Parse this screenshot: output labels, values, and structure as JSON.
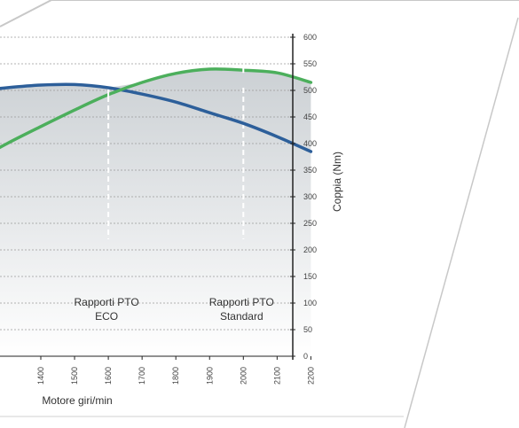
{
  "chart_data": {
    "type": "line",
    "title": "",
    "xlabel": "Motore giri/min",
    "ylabel": "Coppia (Nm)",
    "x_ticks": [
      1400,
      1500,
      1600,
      1700,
      1800,
      1900,
      2000,
      2100,
      2200
    ],
    "y_ticks": [
      0,
      50,
      100,
      150,
      200,
      250,
      300,
      350,
      400,
      450,
      500,
      550,
      600
    ],
    "xlim": [
      1200,
      2200
    ],
    "ylim": [
      0,
      600
    ],
    "grid": true,
    "series": [
      {
        "color": "#2d5f9a",
        "x": [
          1200,
          1300,
          1400,
          1500,
          1600,
          1700,
          1800,
          1900,
          2000,
          2100,
          2200
        ],
        "y": [
          498,
          505,
          510,
          511,
          505,
          493,
          478,
          458,
          438,
          413,
          385
        ]
      },
      {
        "color": "#4caf5c",
        "x": [
          1200,
          1300,
          1400,
          1500,
          1600,
          1700,
          1800,
          1900,
          2000,
          2100,
          2200
        ],
        "y": [
          365,
          400,
          432,
          463,
          492,
          515,
          532,
          540,
          538,
          533,
          515
        ]
      }
    ],
    "markers": [
      {
        "x": 1600,
        "label_line1": "Rapporti PTO",
        "label_line2": "ECO"
      },
      {
        "x": 2000,
        "label_line1": "Rapporti PTO",
        "label_line2": "Standard"
      }
    ]
  },
  "colors": {
    "fill_top": "#c9ced2",
    "fill_bottom": "#ffffff",
    "grid": "#9a9a9a",
    "axis": "#222222",
    "frame": "#c8c8c8"
  }
}
